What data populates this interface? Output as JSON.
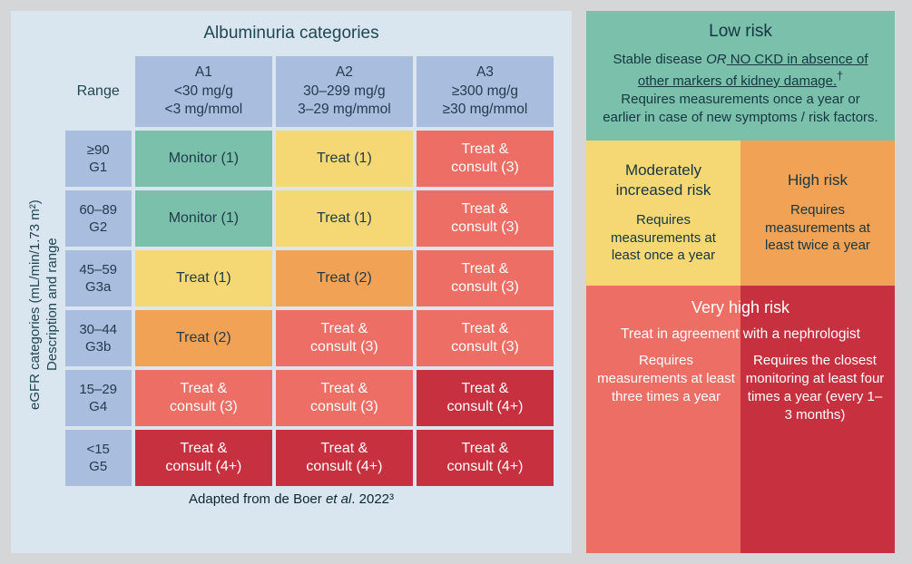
{
  "colors": {
    "page_bg": "#d4d6d8",
    "panel_bg": "#d9e5ef",
    "header_cell": "#a9bedf",
    "low": "#7ac0ab",
    "moderate": "#f5d874",
    "high": "#f1a255",
    "veryhigh_light": "#ed6e64",
    "veryhigh_dark": "#c7303e",
    "text_dark": "#1f3a4a",
    "text_light": "#ffffff"
  },
  "left": {
    "columns_title": "Albuminuria categories",
    "rows_title_line1": "eGFR categories (mL/min/1.73 m²)",
    "rows_title_line2": "Description and range",
    "range_label": "Range",
    "col_headers": [
      {
        "code": "A1",
        "line1": "<30 mg/g",
        "line2": "<3 mg/mmol"
      },
      {
        "code": "A2",
        "line1": "30–299 mg/g",
        "line2": "3–29 mg/mmol"
      },
      {
        "code": "A3",
        "line1": "≥300 mg/g",
        "line2": "≥30 mg/mmol"
      }
    ],
    "rows": [
      {
        "range": "≥90",
        "code": "G1"
      },
      {
        "range": "60–89",
        "code": "G2"
      },
      {
        "range": "45–59",
        "code": "G3a"
      },
      {
        "range": "30–44",
        "code": "G3b"
      },
      {
        "range": "15–29",
        "code": "G4"
      },
      {
        "range": "<15",
        "code": "G5"
      }
    ],
    "cells": [
      [
        {
          "label": "Monitor (1)",
          "risk": "low"
        },
        {
          "label": "Treat (1)",
          "risk": "moderate"
        },
        {
          "label": "Treat & consult (3)",
          "risk": "veryhigh_light"
        }
      ],
      [
        {
          "label": "Monitor (1)",
          "risk": "low"
        },
        {
          "label": "Treat (1)",
          "risk": "moderate"
        },
        {
          "label": "Treat & consult (3)",
          "risk": "veryhigh_light"
        }
      ],
      [
        {
          "label": "Treat (1)",
          "risk": "moderate"
        },
        {
          "label": "Treat (2)",
          "risk": "high"
        },
        {
          "label": "Treat & consult (3)",
          "risk": "veryhigh_light"
        }
      ],
      [
        {
          "label": "Treat (2)",
          "risk": "high"
        },
        {
          "label": "Treat & consult (3)",
          "risk": "veryhigh_light"
        },
        {
          "label": "Treat & consult (3)",
          "risk": "veryhigh_light"
        }
      ],
      [
        {
          "label": "Treat & consult (3)",
          "risk": "veryhigh_light"
        },
        {
          "label": "Treat & consult (3)",
          "risk": "veryhigh_light"
        },
        {
          "label": "Treat & consult (4+)",
          "risk": "veryhigh_dark"
        }
      ],
      [
        {
          "label": "Treat & consult (4+)",
          "risk": "veryhigh_dark"
        },
        {
          "label": "Treat & consult (4+)",
          "risk": "veryhigh_dark"
        },
        {
          "label": "Treat & consult (4+)",
          "risk": "veryhigh_dark"
        }
      ]
    ],
    "caption_prefix": "Adapted from de Boer ",
    "caption_ital": "et al",
    "caption_suffix": ". 2022³"
  },
  "legend": {
    "low": {
      "title": "Low risk",
      "line1a": "Stable disease ",
      "line1_or": "OR",
      "line1b": " NO CKD in absence of other markers of kidney damage.",
      "dagger": "†",
      "line2": "Requires measurements once a year or earlier in case of new symptoms / risk factors."
    },
    "moderate": {
      "title": "Moderately increased risk",
      "body": "Requires measurements at least once a year"
    },
    "high": {
      "title": "High risk",
      "body": "Requires measurements at least twice a year"
    },
    "veryhigh": {
      "title": "Very high risk",
      "subtitle": "Treat in agreement with a nephrologist",
      "col1": "Requires measurements at least three times a year",
      "col2": "Requires the closest monitoring at least four times a year (every 1–3 months)"
    }
  }
}
